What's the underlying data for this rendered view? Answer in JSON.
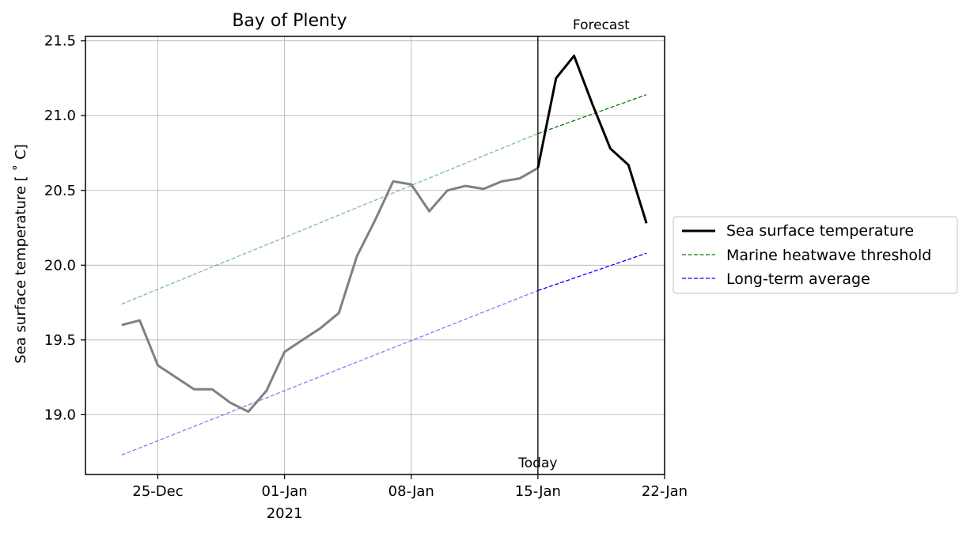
{
  "chart_data": {
    "type": "line",
    "title": "Bay of Plenty",
    "xlabel": "",
    "ylabel": "Sea surface temperature [$^\\circ$C]",
    "ylabel_display": "Sea surface temperature [ ˚ C]",
    "year_label": "2021",
    "xlim": [
      "2020-12-21",
      "2021-01-22"
    ],
    "ylim": [
      18.6,
      21.53
    ],
    "y_ticks": [
      19.0,
      19.5,
      20.0,
      20.5,
      21.0,
      21.5
    ],
    "y_tick_labels": [
      "19.0",
      "19.5",
      "20.0",
      "20.5",
      "21.0",
      "21.5"
    ],
    "x_ticks": [
      "2020-12-25",
      "2021-01-01",
      "2021-01-08",
      "2021-01-15",
      "2021-01-22"
    ],
    "x_tick_labels": [
      "25-Dec",
      "01-Jan",
      "08-Jan",
      "15-Jan",
      "22-Jan"
    ],
    "grid": true,
    "legend_position": "right-outside",
    "today": "2021-01-15",
    "annotations": {
      "today": "Today",
      "forecast": "Forecast"
    },
    "observed": {
      "name": "Sea surface temperature",
      "color": "#808080",
      "x": [
        "2020-12-23",
        "2020-12-24",
        "2020-12-25",
        "2020-12-26",
        "2020-12-27",
        "2020-12-28",
        "2020-12-29",
        "2020-12-30",
        "2020-12-31",
        "2021-01-01",
        "2021-01-02",
        "2021-01-03",
        "2021-01-04",
        "2021-01-05",
        "2021-01-06",
        "2021-01-07",
        "2021-01-08",
        "2021-01-09",
        "2021-01-10",
        "2021-01-11",
        "2021-01-12",
        "2021-01-13",
        "2021-01-14",
        "2021-01-15"
      ],
      "values": [
        19.6,
        19.63,
        19.33,
        19.25,
        19.17,
        19.17,
        19.08,
        19.02,
        19.16,
        19.42,
        19.5,
        19.58,
        19.68,
        20.06,
        20.3,
        20.56,
        20.54,
        20.36,
        20.5,
        20.53,
        20.51,
        20.56,
        20.58,
        20.65
      ]
    },
    "series": [
      {
        "name": "Sea surface temperature",
        "color": "#000000",
        "style": "solid",
        "x": [
          "2021-01-15",
          "2021-01-16",
          "2021-01-17",
          "2021-01-18",
          "2021-01-19",
          "2021-01-20",
          "2021-01-21"
        ],
        "values": [
          20.65,
          21.25,
          21.4,
          21.08,
          20.78,
          20.67,
          20.28
        ]
      },
      {
        "name": "Marine heatwave threshold",
        "color": "#008000",
        "style": "dashed",
        "x": [
          "2020-12-23",
          "2021-01-15",
          "2021-01-21"
        ],
        "values": [
          19.74,
          20.88,
          21.14
        ]
      },
      {
        "name": "Long-term average",
        "color": "#0000ff",
        "style": "dashed",
        "x": [
          "2020-12-23",
          "2021-01-15",
          "2021-01-21"
        ],
        "values": [
          18.73,
          19.83,
          20.08
        ]
      }
    ]
  }
}
